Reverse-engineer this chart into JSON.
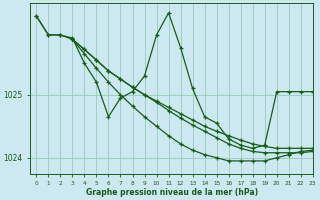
{
  "background_color": "#cce8f0",
  "line_color": "#1a5c1a",
  "grid_color": "#99ccbb",
  "xlabel": "Graphe pression niveau de la mer (hPa)",
  "ylabel_ticks": [
    1024,
    1025
  ],
  "xlim": [
    -0.5,
    23
  ],
  "ylim": [
    1023.75,
    1026.45
  ],
  "xticks": [
    0,
    1,
    2,
    3,
    4,
    5,
    6,
    7,
    8,
    9,
    10,
    11,
    12,
    13,
    14,
    15,
    16,
    17,
    18,
    19,
    20,
    21,
    22,
    23
  ],
  "lines": [
    {
      "x": [
        0,
        1,
        2,
        3,
        4,
        5,
        6,
        7,
        8,
        9,
        10,
        11,
        12,
        13,
        14,
        15,
        16,
        17,
        18,
        19,
        20,
        21,
        22,
        23
      ],
      "y": [
        1026.25,
        1025.95,
        1025.95,
        1025.9,
        1025.5,
        1025.2,
        1024.65,
        1024.95,
        1025.05,
        1025.3,
        1025.95,
        1026.3,
        1025.75,
        1025.1,
        1024.65,
        1024.55,
        1024.3,
        1024.2,
        1024.15,
        1024.2,
        1025.05,
        1025.05,
        1025.05,
        1025.05
      ]
    },
    {
      "x": [
        0,
        1,
        2,
        3,
        4,
        5,
        6,
        7,
        8,
        9,
        10,
        11,
        12,
        13,
        14,
        15,
        16,
        17,
        18,
        19,
        20,
        21,
        22,
        23
      ],
      "y": [
        1026.25,
        1025.95,
        1025.95,
        1025.88,
        1025.72,
        1025.55,
        1025.38,
        1025.25,
        1025.12,
        1025.0,
        1024.9,
        1024.8,
        1024.7,
        1024.6,
        1024.5,
        1024.42,
        1024.35,
        1024.28,
        1024.22,
        1024.18,
        1024.15,
        1024.15,
        1024.15,
        1024.15
      ]
    },
    {
      "x": [
        3,
        4,
        5,
        6,
        7,
        8,
        9,
        10,
        11,
        12,
        13,
        14,
        15,
        16,
        17,
        18,
        19,
        20,
        21,
        22,
        23
      ],
      "y": [
        1025.88,
        1025.72,
        1025.55,
        1025.38,
        1025.25,
        1025.12,
        1025.0,
        1024.88,
        1024.75,
        1024.63,
        1024.52,
        1024.42,
        1024.32,
        1024.22,
        1024.15,
        1024.1,
        1024.08,
        1024.08,
        1024.08,
        1024.08,
        1024.1
      ]
    },
    {
      "x": [
        3,
        4,
        5,
        6,
        7,
        8,
        9,
        10,
        11,
        12,
        13,
        14,
        15,
        16,
        17,
        18,
        19,
        20,
        21,
        22,
        23
      ],
      "y": [
        1025.88,
        1025.65,
        1025.42,
        1025.2,
        1025.0,
        1024.82,
        1024.65,
        1024.5,
        1024.35,
        1024.22,
        1024.12,
        1024.05,
        1024.0,
        1023.95,
        1023.95,
        1023.95,
        1023.95,
        1024.0,
        1024.05,
        1024.1,
        1024.12
      ]
    }
  ],
  "marker": "+",
  "marker_size": 3.5,
  "linewidth": 0.9
}
